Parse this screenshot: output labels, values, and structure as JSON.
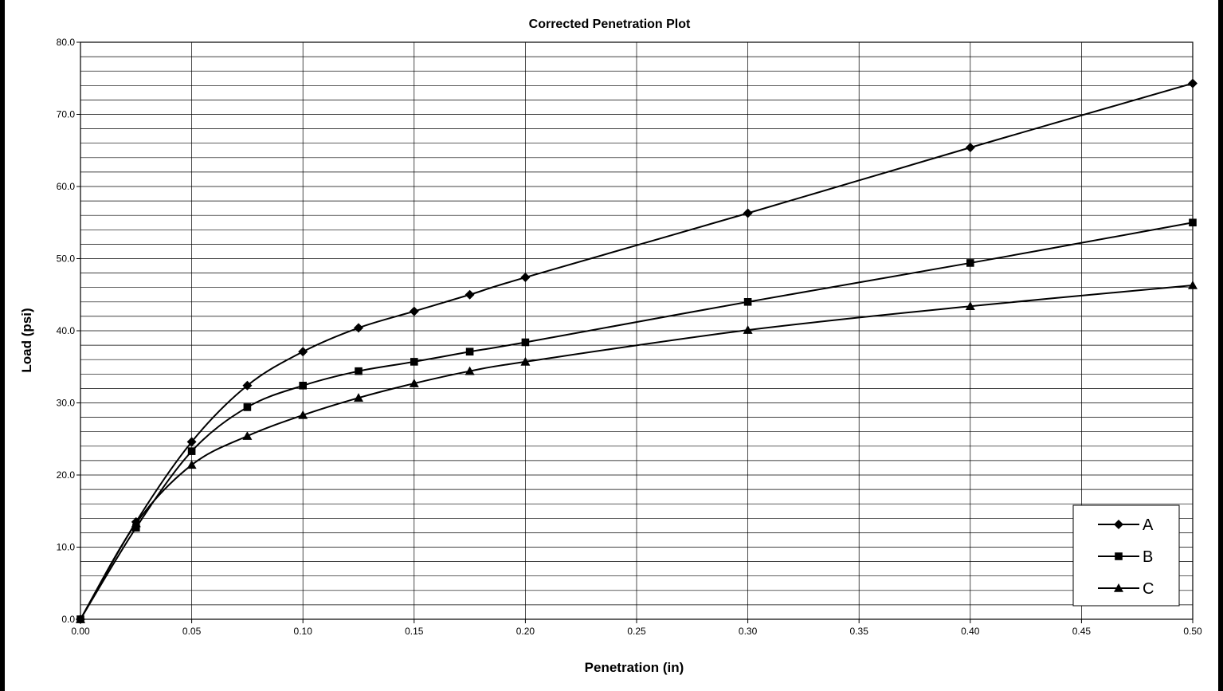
{
  "chart_data": {
    "type": "line",
    "title": "Corrected Penetration Plot",
    "xlabel": "Penetration (in)",
    "ylabel": "Load (psi)",
    "xlim": [
      0,
      0.5
    ],
    "ylim": [
      0,
      80
    ],
    "x_ticks": [
      "0.00",
      "0.05",
      "0.10",
      "0.15",
      "0.20",
      "0.25",
      "0.30",
      "0.35",
      "0.40",
      "0.45",
      "0.50"
    ],
    "y_ticks": [
      "0.0",
      "10.0",
      "20.0",
      "30.0",
      "40.0",
      "50.0",
      "60.0",
      "70.0",
      "80.0"
    ],
    "grid": true,
    "legend_position": "bottom-right",
    "x": [
      0,
      0.025,
      0.05,
      0.075,
      0.1,
      0.125,
      0.15,
      0.175,
      0.2,
      0.3,
      0.4,
      0.5
    ],
    "series": [
      {
        "name": "A",
        "marker": "diamond",
        "values": [
          0,
          13.5,
          24.6,
          32.4,
          37.1,
          40.4,
          42.7,
          45.0,
          47.4,
          56.3,
          65.4,
          74.3
        ]
      },
      {
        "name": "B",
        "marker": "square",
        "values": [
          0,
          12.7,
          23.3,
          29.4,
          32.4,
          34.4,
          35.7,
          37.1,
          38.4,
          44.0,
          49.4,
          55.0
        ]
      },
      {
        "name": "C",
        "marker": "triangle",
        "values": [
          0,
          13.3,
          21.4,
          25.4,
          28.3,
          30.7,
          32.7,
          34.4,
          35.7,
          40.1,
          43.4,
          46.3
        ]
      }
    ],
    "colors": {
      "line": "#000000",
      "grid": "#000000",
      "background": "#ffffff"
    }
  }
}
